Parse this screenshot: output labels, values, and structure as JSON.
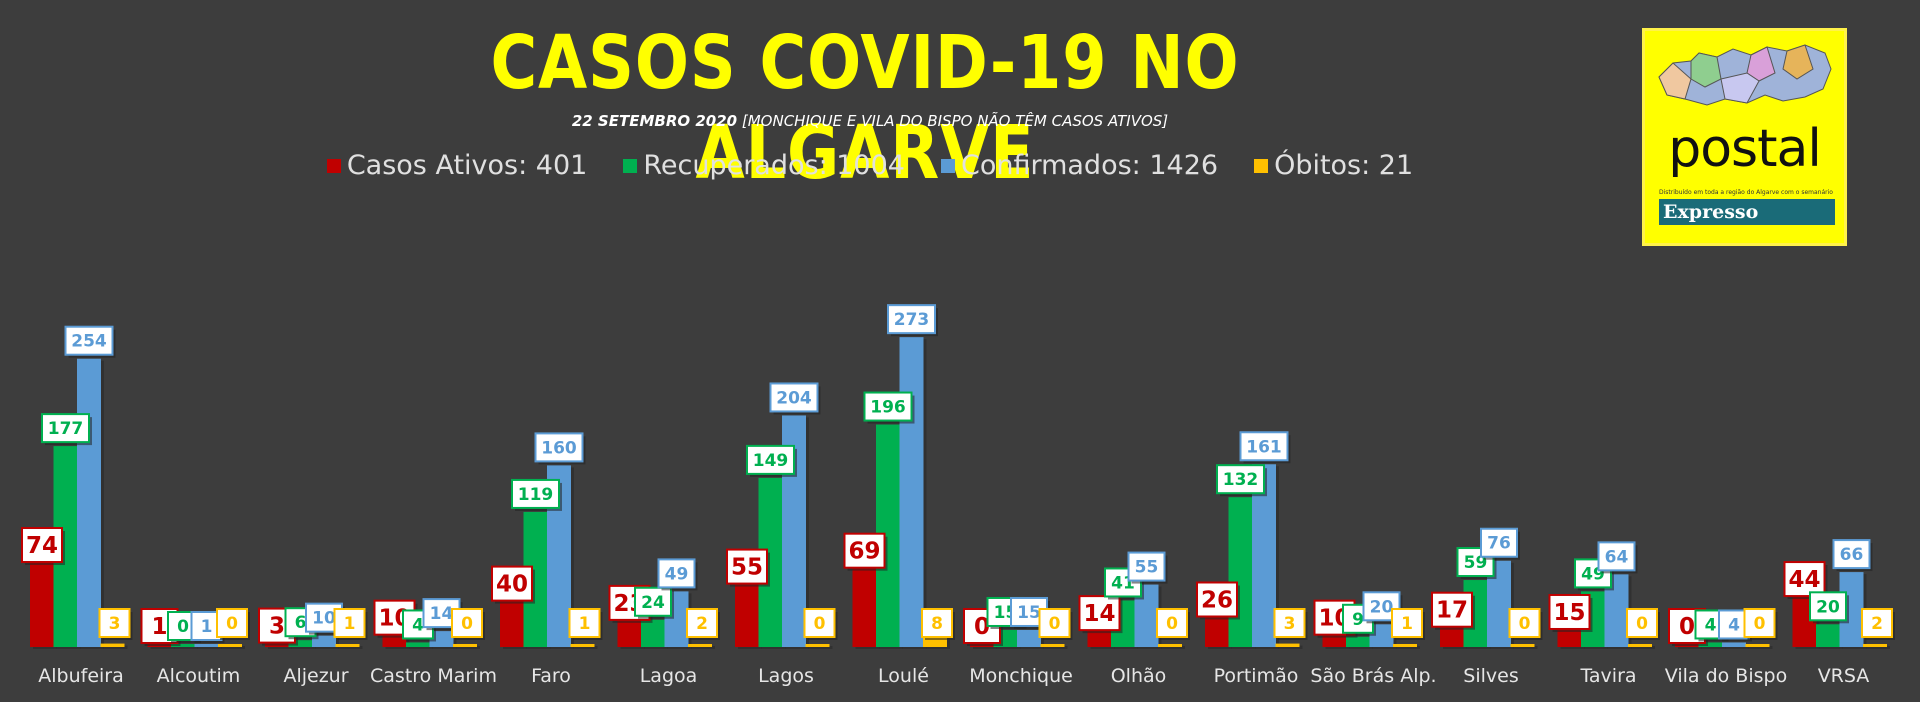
{
  "header": {
    "title": "CASOS COVID-19 NO ALGARVE",
    "subtitle_date": "22 SETEMBRO 2020",
    "subtitle_note": "[MONCHIQUE E VILA DO BISPO NÃO TÊM CASOS ATIVOS]"
  },
  "logo": {
    "word": "postal",
    "tagline": "Distribuído em toda a região do Algarve com o semanário",
    "partner": "Expresso"
  },
  "legend": [
    {
      "label": "Casos Ativos: 401",
      "color": "#c00000"
    },
    {
      "label": "Recuperados: 1004",
      "color": "#00b050"
    },
    {
      "label": "Confirmados: 1426",
      "color": "#5b9bd5"
    },
    {
      "label": "Óbitos: 21",
      "color": "#ffc000"
    }
  ],
  "chart_data": {
    "type": "bar",
    "title": "CASOS COVID-19 NO ALGARVE",
    "xlabel": "",
    "ylabel": "",
    "grid": false,
    "legend_position": "top",
    "categories": [
      "Albufeira",
      "Alcoutim",
      "Aljezur",
      "Castro Marim",
      "Faro",
      "Lagoa",
      "Lagos",
      "Loulé",
      "Monchique",
      "Olhão",
      "Portimão",
      "São Brás Alp.",
      "Silves",
      "Tavira",
      "Vila do Bispo",
      "VRSA"
    ],
    "series": [
      {
        "name": "Casos Ativos",
        "color": "#c00000",
        "values": [
          74,
          1,
          3,
          10,
          40,
          23,
          55,
          69,
          0,
          14,
          26,
          10,
          17,
          15,
          0,
          44
        ]
      },
      {
        "name": "Recuperados",
        "color": "#00b050",
        "values": [
          177,
          0,
          6,
          4,
          119,
          24,
          149,
          196,
          15,
          41,
          132,
          9,
          59,
          49,
          4,
          20
        ]
      },
      {
        "name": "Confirmados",
        "color": "#5b9bd5",
        "values": [
          254,
          1,
          10,
          14,
          160,
          49,
          204,
          273,
          15,
          55,
          161,
          20,
          76,
          64,
          4,
          66
        ]
      },
      {
        "name": "Óbitos",
        "color": "#ffc000",
        "values": [
          3,
          0,
          1,
          0,
          1,
          2,
          0,
          8,
          0,
          0,
          3,
          1,
          0,
          0,
          0,
          2
        ]
      }
    ]
  }
}
